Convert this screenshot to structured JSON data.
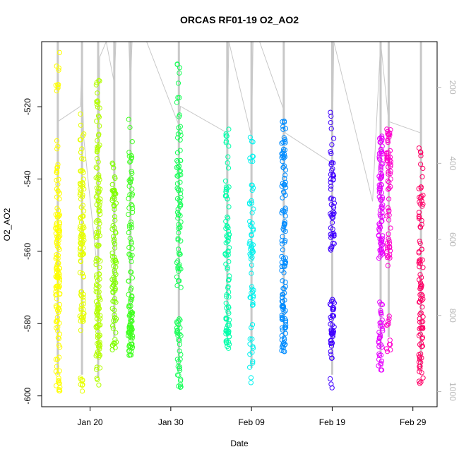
{
  "chart_data": {
    "type": "scatter",
    "title": "ORCAS RF01-19 O2_AO2",
    "xlabel": "Date",
    "ylabel": "O2_AO2",
    "ylim": [
      -603,
      -502
    ],
    "y_ticks": [
      -600,
      -580,
      -560,
      -540,
      -520
    ],
    "x_ticks": [
      "Jan 20",
      "Jan 30",
      "Feb 09",
      "Feb 19",
      "Feb 29"
    ],
    "x_range": [
      "2016-01-14",
      "2016-03-03"
    ],
    "right_axis": {
      "range": [
        80,
        1040
      ],
      "reversed": true,
      "ticks": [
        200,
        400,
        600,
        800,
        1000
      ],
      "color": "#b8b8b8"
    },
    "grid": false,
    "marker": "open-circle",
    "flights": [
      {
        "date": "2016-01-16",
        "color": "#ffff00",
        "clusters": [
          [
            -505,
            -518,
            10
          ],
          [
            -528,
            -552,
            28
          ],
          [
            -552,
            -572,
            70
          ],
          [
            -572,
            -590,
            26
          ],
          [
            -590,
            -599,
            14
          ]
        ]
      },
      {
        "date": "2016-01-19",
        "color": "#e6ff00",
        "clusters": [
          [
            -522,
            -540,
            14
          ],
          [
            -540,
            -562,
            55
          ],
          [
            -562,
            -582,
            30
          ],
          [
            -594,
            -599,
            8
          ]
        ]
      },
      {
        "date": "2016-01-21",
        "color": "#b3ff00",
        "clusters": [
          [
            -511,
            -530,
            18
          ],
          [
            -530,
            -552,
            40
          ],
          [
            -552,
            -575,
            40
          ],
          [
            -575,
            -590,
            44
          ],
          [
            -592,
            -600,
            6
          ]
        ]
      },
      {
        "date": "2016-01-23",
        "color": "#80ff00",
        "clusters": [
          [
            -534,
            -542,
            6
          ],
          [
            -543,
            -572,
            60
          ],
          [
            -572,
            -588,
            22
          ]
        ]
      },
      {
        "date": "2016-01-25",
        "color": "#40ff20",
        "clusters": [
          [
            -522,
            -540,
            12
          ],
          [
            -540,
            -560,
            28
          ],
          [
            -560,
            -578,
            26
          ],
          [
            -576,
            -589,
            50
          ]
        ]
      },
      {
        "date": "2016-01-31",
        "color": "#1aff5a",
        "clusters": [
          [
            -508,
            -525,
            10
          ],
          [
            -525,
            -545,
            30
          ],
          [
            -545,
            -570,
            40
          ],
          [
            -578,
            -598,
            36
          ]
        ]
      },
      {
        "date": "2016-02-06",
        "color": "#00ffaa",
        "clusters": [
          [
            -525,
            -540,
            10
          ],
          [
            -540,
            -556,
            24
          ],
          [
            -556,
            -573,
            26
          ],
          [
            -573,
            -588,
            34
          ]
        ]
      },
      {
        "date": "2016-02-09",
        "color": "#00f2ee",
        "clusters": [
          [
            -527,
            -545,
            12
          ],
          [
            -545,
            -560,
            22
          ],
          [
            -560,
            -575,
            22
          ],
          [
            -578,
            -597,
            14
          ]
        ]
      },
      {
        "date": "2016-02-13",
        "color": "#008cff",
        "clusters": [
          [
            -524,
            -545,
            40
          ],
          [
            -545,
            -570,
            40
          ],
          [
            -570,
            -588,
            50
          ]
        ]
      },
      {
        "date": "2016-02-19",
        "color": "#4000ff",
        "clusters": [
          [
            -521,
            -535,
            8
          ],
          [
            -535,
            -560,
            50
          ],
          [
            -573,
            -590,
            40
          ],
          [
            -595,
            -599,
            3
          ]
        ]
      },
      {
        "date": "2016-02-25",
        "color": "#e600ff",
        "clusters": [
          [
            -528,
            -545,
            40
          ],
          [
            -545,
            -562,
            45
          ],
          [
            -574,
            -593,
            34
          ]
        ]
      },
      {
        "date": "2016-02-26",
        "color": "#ff00cc",
        "clusters": [
          [
            -526,
            -548,
            44
          ],
          [
            -548,
            -565,
            24
          ],
          [
            -575,
            -588,
            12
          ]
        ]
      },
      {
        "date": "2016-03-01",
        "color": "#ff0066",
        "clusters": [
          [
            -531,
            -548,
            20
          ],
          [
            -548,
            -575,
            40
          ],
          [
            -575,
            -597,
            40
          ]
        ]
      }
    ],
    "altitude_path": [
      [
        "2016-01-16",
        290
      ],
      [
        "2016-01-18.8",
        250
      ],
      [
        "2016-01-19",
        130
      ],
      [
        "2016-01-19.2",
        330
      ],
      [
        "2016-01-21",
        700
      ],
      [
        "2016-01-21.2",
        120
      ],
      [
        "2016-01-22",
        80
      ],
      [
        "2016-01-23",
        190
      ],
      [
        "2016-01-23.2",
        80
      ],
      [
        "2016-01-24.8",
        80
      ],
      [
        "2016-01-25",
        200
      ],
      [
        "2016-01-25.2",
        80
      ],
      [
        "2016-01-27",
        80
      ],
      [
        "2016-01-31",
        300
      ],
      [
        "2016-01-31.2",
        250
      ],
      [
        "2016-02-06",
        320
      ],
      [
        "2016-02-06.2",
        80
      ],
      [
        "2016-02-09",
        330
      ],
      [
        "2016-02-09.2",
        80
      ],
      [
        "2016-02-10",
        80
      ],
      [
        "2016-02-13",
        260
      ],
      [
        "2016-02-13.2",
        320
      ],
      [
        "2016-02-19",
        400
      ],
      [
        "2016-02-19.2",
        80
      ],
      [
        "2016-02-24",
        500
      ],
      [
        "2016-02-25",
        80
      ],
      [
        "2016-02-26",
        290
      ],
      [
        "2016-03-01",
        320
      ]
    ],
    "altitude_color": "#c8c8c8"
  }
}
